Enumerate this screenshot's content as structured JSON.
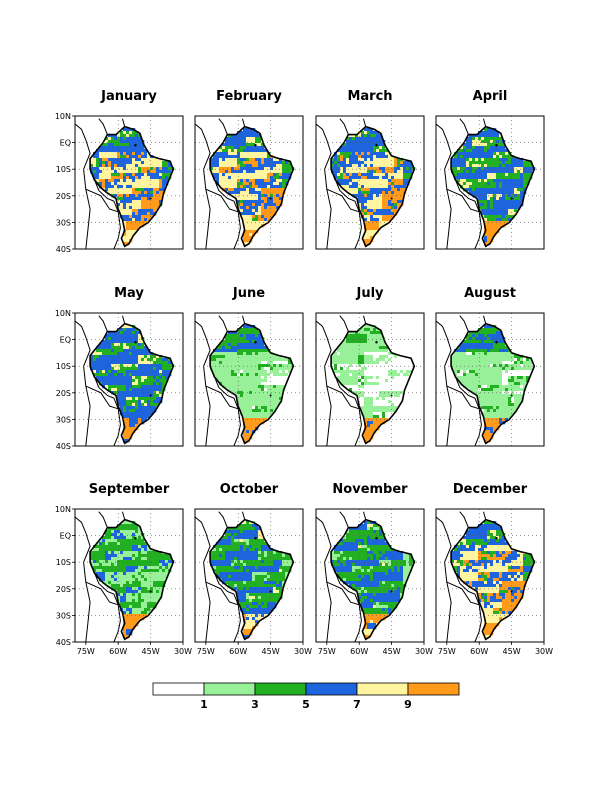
{
  "chart_data": {
    "type": "heatmap",
    "panels": [
      {
        "title": "January",
        "pattern": "wet"
      },
      {
        "title": "February",
        "pattern": "wet"
      },
      {
        "title": "March",
        "pattern": "wet"
      },
      {
        "title": "April",
        "pattern": "transition-dry"
      },
      {
        "title": "May",
        "pattern": "transition-dry"
      },
      {
        "title": "June",
        "pattern": "dry"
      },
      {
        "title": "July",
        "pattern": "driest"
      },
      {
        "title": "August",
        "pattern": "dry"
      },
      {
        "title": "September",
        "pattern": "dry-green"
      },
      {
        "title": "October",
        "pattern": "transition-wet"
      },
      {
        "title": "November",
        "pattern": "transition-wet"
      },
      {
        "title": "December",
        "pattern": "wet"
      }
    ],
    "xlabel": "",
    "ylabel": "",
    "x_ticks": [
      "75W",
      "60W",
      "45W",
      "30W"
    ],
    "y_ticks": [
      "10N",
      "EQ",
      "10S",
      "20S",
      "30S",
      "40S"
    ],
    "xlim": [
      -80,
      -30
    ],
    "ylim": [
      -40,
      10
    ],
    "grid": "dotted",
    "colorbar": {
      "tick_labels": [
        "1",
        "3",
        "5",
        "7",
        "9"
      ],
      "colors": [
        "#ffffff",
        "#98f098",
        "#22b022",
        "#1e64dc",
        "#fff5a0",
        "#ff9a1a"
      ],
      "boundaries": [
        1,
        3,
        5,
        7,
        9
      ]
    }
  }
}
